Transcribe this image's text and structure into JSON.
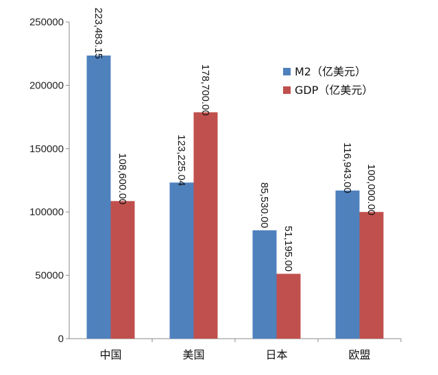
{
  "chart_data": {
    "type": "bar",
    "categories": [
      "中国",
      "美国",
      "日本",
      "欧盟"
    ],
    "series": [
      {
        "name": "M2（亿美元）",
        "values": [
          223483.15,
          123225.04,
          85530.0,
          116943.0
        ],
        "labels": [
          "223,483.15",
          "123,225.04",
          "85,530.00",
          "116,943.00"
        ],
        "color": "#4f81bd"
      },
      {
        "name": "GDP（亿美元）",
        "values": [
          108600.0,
          178700.0,
          51195.0,
          100000.0
        ],
        "labels": [
          "108,600.00",
          "178,700.00",
          "51,195.00",
          "100,000.00"
        ],
        "color": "#c0504d"
      }
    ],
    "ylim": [
      0,
      250000
    ],
    "yticks": [
      0,
      50000,
      100000,
      150000,
      200000,
      250000
    ],
    "ytick_labels": [
      "0",
      "50000",
      "100000",
      "150000",
      "200000",
      "250000"
    ],
    "grid": false,
    "legend_position": "top-right",
    "title": "",
    "xlabel": "",
    "ylabel": ""
  }
}
